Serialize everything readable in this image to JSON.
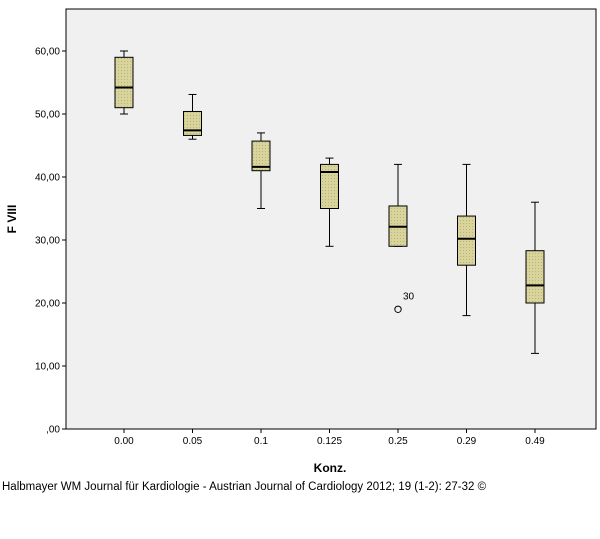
{
  "chart_data": {
    "type": "box",
    "xlabel": "Konz.",
    "ylabel": "F VIII",
    "ylim": [
      0,
      65
    ],
    "yticks": [
      0,
      10,
      20,
      30,
      40,
      50,
      60
    ],
    "ytick_labels": [
      ",00",
      "10,00",
      "20,00",
      "30,00",
      "40,00",
      "50,00",
      "60,00"
    ],
    "categories": [
      "0.00",
      "0.05",
      "0.1",
      "0.125",
      "0.25",
      "0.29",
      "0.49"
    ],
    "boxes": [
      {
        "min": 50,
        "q1": 51,
        "median": 54.2,
        "q3": 59,
        "max": 60
      },
      {
        "min": 46,
        "q1": 46.6,
        "median": 47.4,
        "q3": 50.4,
        "max": 53.1
      },
      {
        "min": 35,
        "q1": 41,
        "median": 41.6,
        "q3": 45.7,
        "max": 47
      },
      {
        "min": 29,
        "q1": 35,
        "median": 40.8,
        "q3": 42,
        "max": 43
      },
      {
        "min": 29,
        "q1": 29,
        "median": 32.1,
        "q3": 35.4,
        "max": 42
      },
      {
        "min": 18,
        "q1": 26,
        "median": 30.2,
        "q3": 33.8,
        "max": 42
      },
      {
        "min": 12,
        "q1": 20,
        "median": 22.8,
        "q3": 28.3,
        "max": 36
      }
    ],
    "outliers": [
      {
        "category": "0.25",
        "value": 19,
        "label": "30"
      }
    ],
    "colors": {
      "box_fill": "#d8d49c",
      "plot_bg": "#f0f0f0",
      "stroke": "#000000"
    },
    "grid": false
  },
  "credit": "Halbmayer WM Journal für Kardiologie - Austrian Journal of Cardiology 2012; 19 (1-2): 27-32 ©"
}
